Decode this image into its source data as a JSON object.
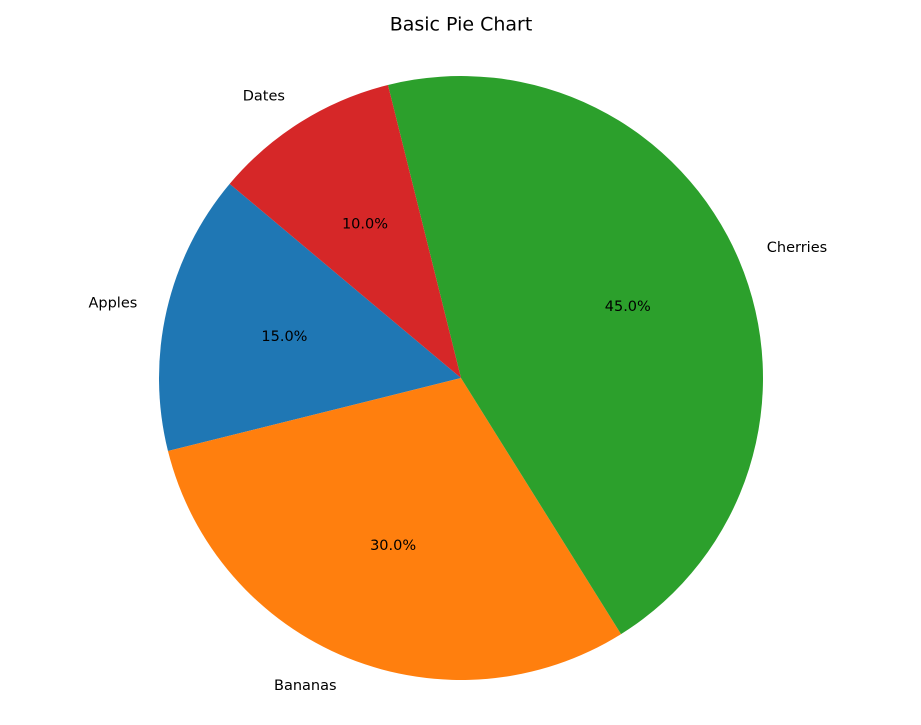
{
  "chart_data": {
    "type": "pie",
    "title": "Basic Pie Chart",
    "categories": [
      "Apples",
      "Bananas",
      "Cherries",
      "Dates"
    ],
    "values": [
      15,
      30,
      45,
      10
    ],
    "value_labels": [
      "15.0%",
      "30.0%",
      "45.0%",
      "10.0%"
    ],
    "colors": [
      "#1f77b4",
      "#ff7f0e",
      "#2ca02c",
      "#d62728"
    ]
  }
}
